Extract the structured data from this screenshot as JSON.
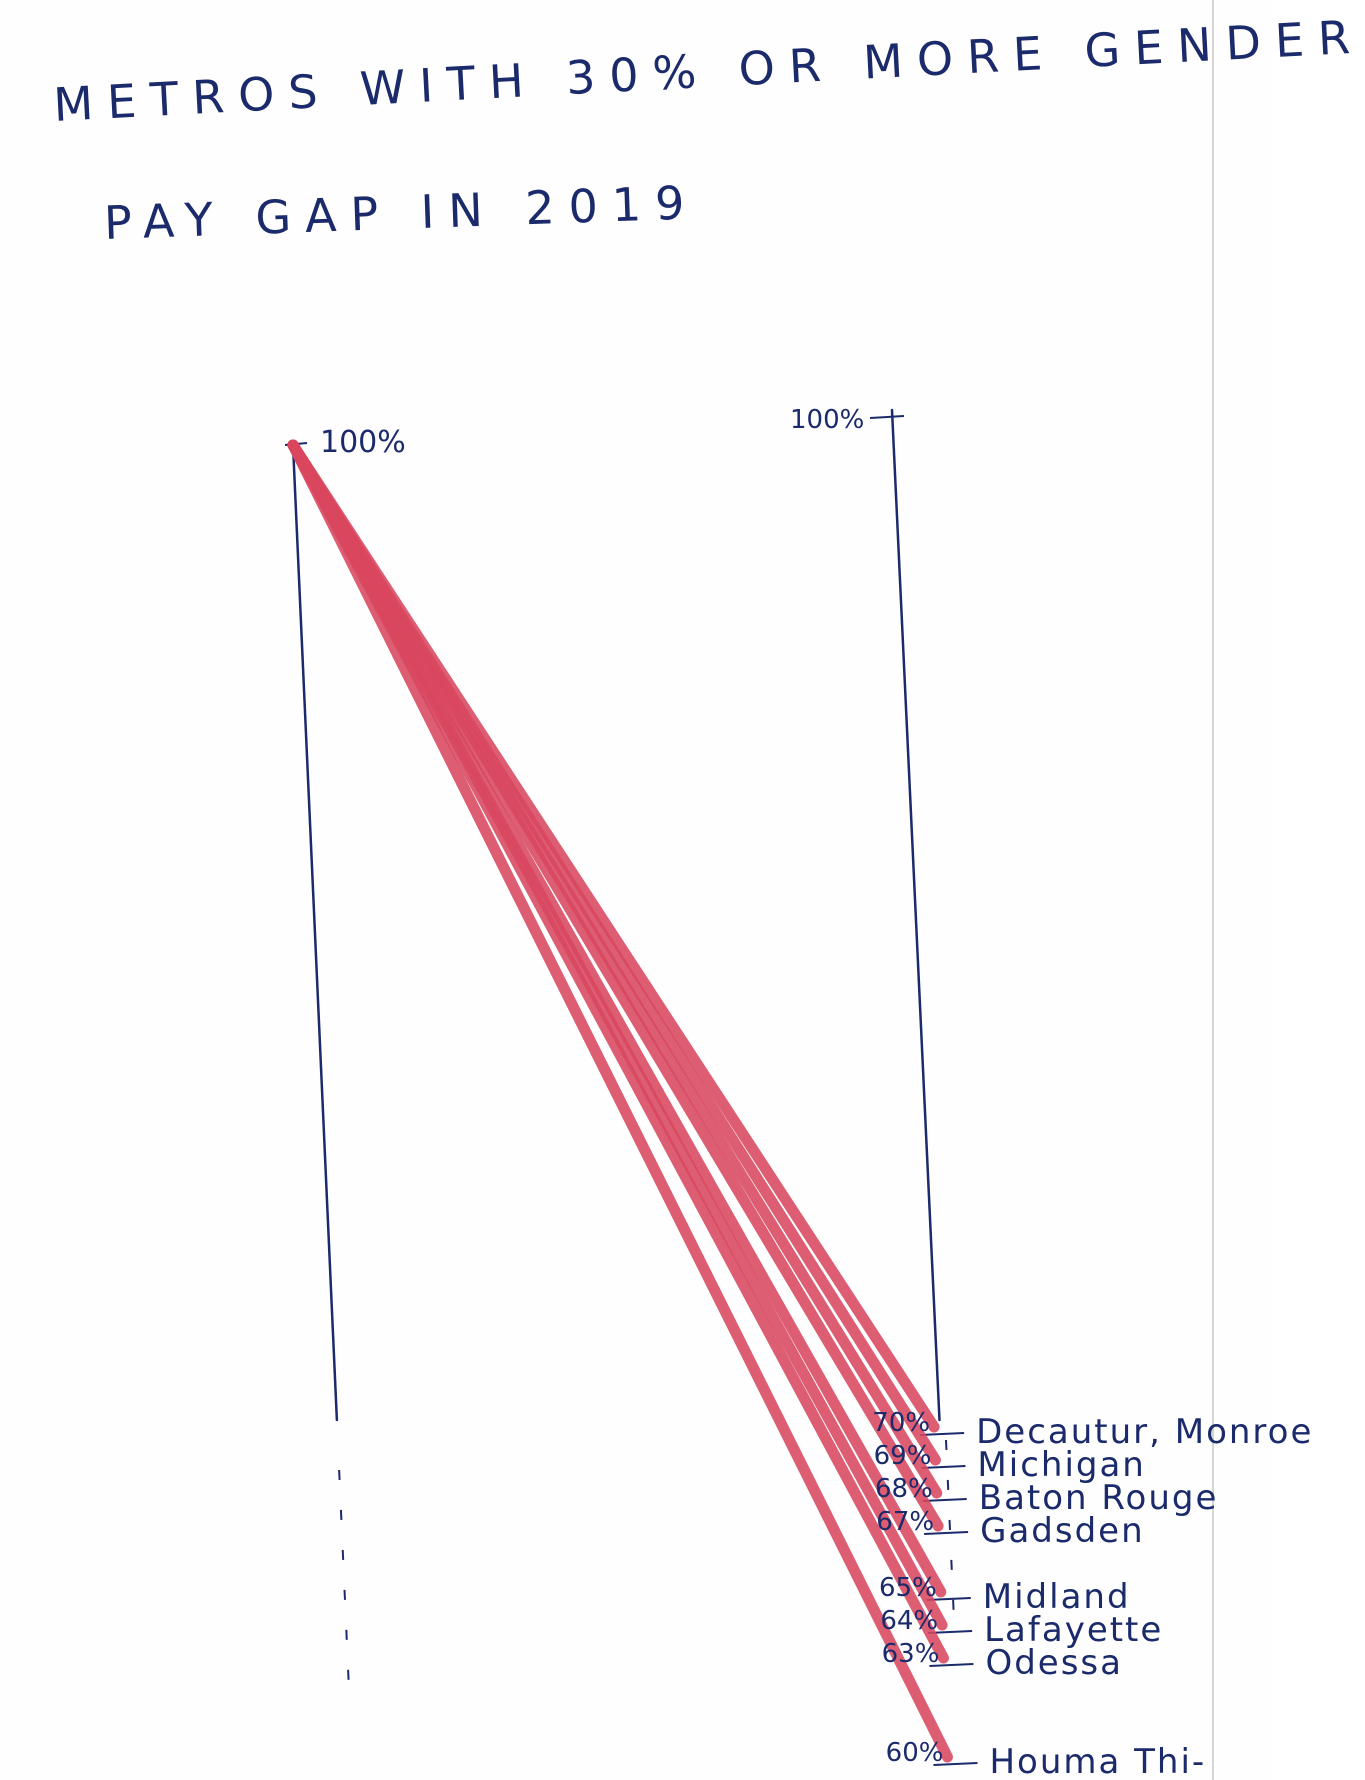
{
  "title": {
    "line1": "METROS WITH 30% OR MORE GENDER",
    "line2": "PAY GAP IN 2019"
  },
  "colors": {
    "ink": "#1b2a6b",
    "slope_line": "#d8475f",
    "paper": "#fefefe"
  },
  "chart_data": {
    "type": "line",
    "subtype": "slope",
    "title": "METROS WITH 30% OR MORE GENDER PAY GAP IN 2019",
    "left_axis_label": "100%",
    "right_axis_label": "100%",
    "ylim": [
      55,
      100
    ],
    "start_value": 100,
    "series": [
      {
        "name": "Decautur, Monroe",
        "value": 70,
        "value_label": "70%"
      },
      {
        "name": "Michigan",
        "value": 69,
        "value_label": "69%"
      },
      {
        "name": "Baton Rouge",
        "value": 68,
        "value_label": "68%"
      },
      {
        "name": "Gadsden",
        "value": 67,
        "value_label": "67%"
      },
      {
        "name": "Midland",
        "value": 65,
        "value_label": "65%"
      },
      {
        "name": "Lafayette",
        "value": 64,
        "value_label": "64%"
      },
      {
        "name": "Odessa",
        "value": 63,
        "value_label": "63%"
      },
      {
        "name": "Houma Thi-",
        "value": 60,
        "value_label": "60%"
      }
    ]
  }
}
